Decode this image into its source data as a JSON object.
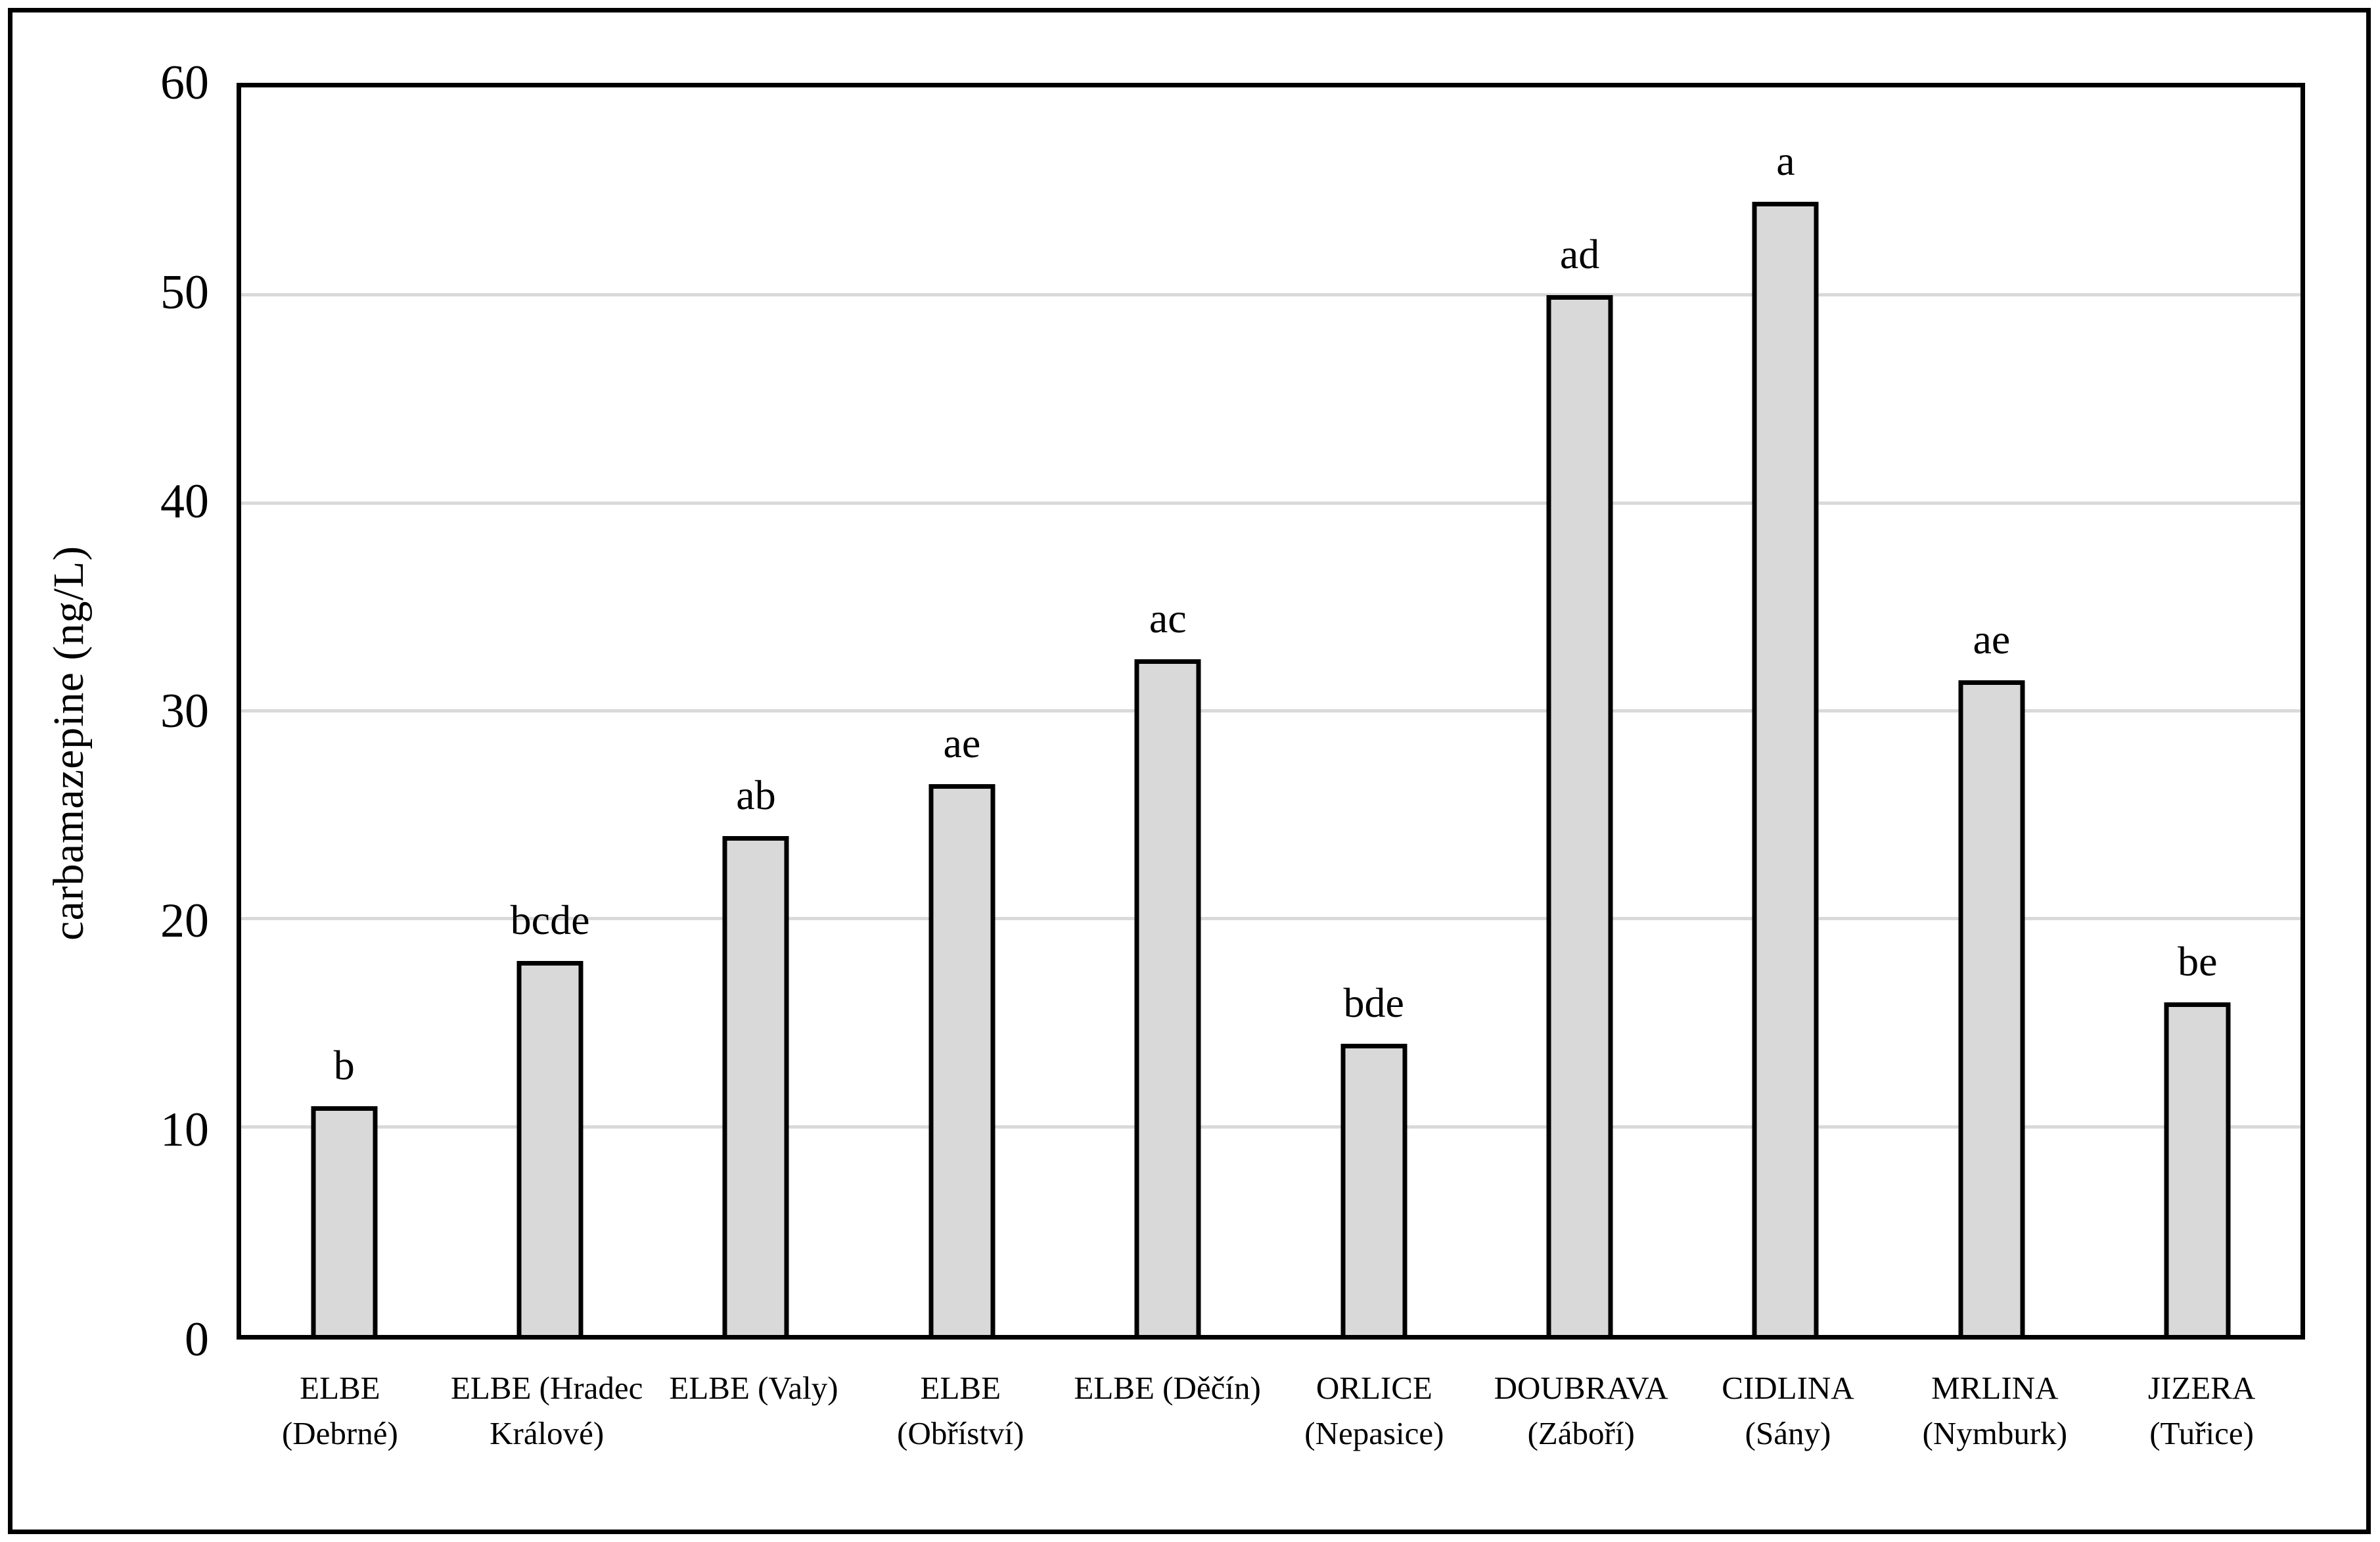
{
  "chart_data": {
    "type": "bar",
    "title": "",
    "xlabel": "",
    "ylabel": "carbamazepine (ng/L)",
    "ylim": [
      0,
      60
    ],
    "yticks": [
      0,
      10,
      20,
      30,
      40,
      50,
      60
    ],
    "grid": "horizontal gridlines at 10-50, light gray",
    "legend": "none",
    "bar_fill_color": "#d9d9d9",
    "bar_border_color": "#000000",
    "gridline_color": "#d9d9d9",
    "frame_color": "#000000",
    "categories": [
      "ELBE\n(Debrné)",
      "ELBE (Hradec\nKrálové)",
      "ELBE (Valy)",
      "ELBE\n(Obříství)",
      "ELBE (Děčín)",
      "ORLICE\n(Nepasice)",
      "DOUBRAVA\n(Záboří)",
      "CIDLINA\n(Sány)",
      "MRLINA\n(Nymburk)",
      "JIZERA\n(Tuřice)"
    ],
    "values": [
      11,
      18,
      24,
      26.5,
      32.5,
      14,
      50,
      54.5,
      31.5,
      16
    ],
    "significance_letters": [
      "b",
      "bcde",
      "ab",
      "ae",
      "ac",
      "bde",
      "ad",
      "a",
      "ae",
      "be"
    ]
  }
}
